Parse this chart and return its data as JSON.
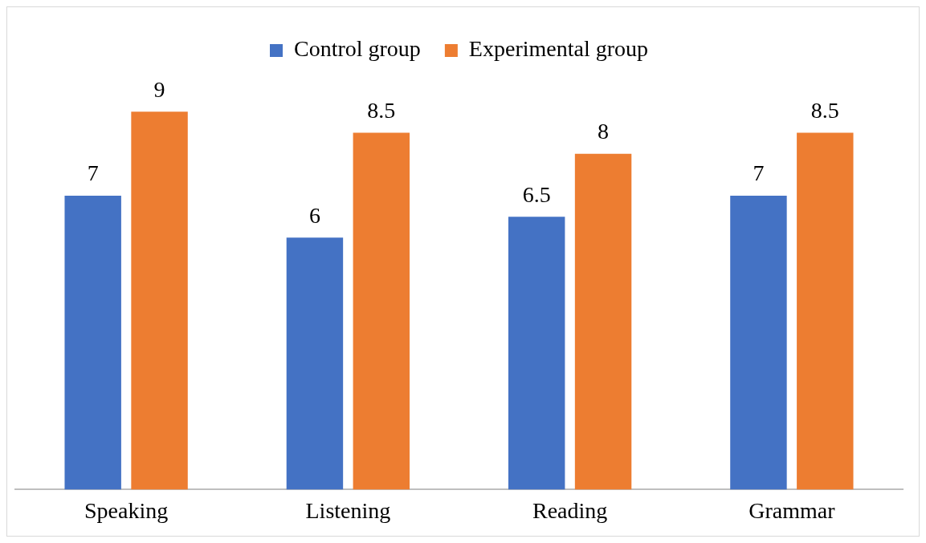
{
  "chart_data": {
    "type": "bar",
    "categories": [
      "Speaking",
      "Listening",
      "Reading",
      "Grammar"
    ],
    "series": [
      {
        "name": "Control group",
        "color": "#4472c4",
        "values": [
          7,
          6,
          6.5,
          7
        ]
      },
      {
        "name": "Experimental group",
        "color": "#ed7d31",
        "values": [
          9,
          8.5,
          8,
          8.5
        ]
      }
    ],
    "data_labels": true,
    "legend": "top",
    "grid": false,
    "tick_labels": "x"
  }
}
